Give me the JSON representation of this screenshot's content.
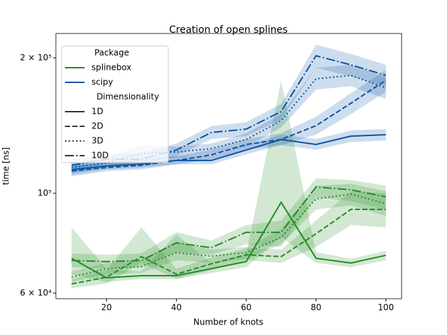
{
  "chart_data": {
    "type": "line",
    "title": "Creation of open splines",
    "x_label": "Number of knots",
    "y_label": "time [ns]",
    "x": [
      10,
      20,
      30,
      40,
      50,
      60,
      70,
      80,
      90,
      100
    ],
    "xlim": [
      5.5,
      104.5
    ],
    "xticks": [
      20,
      40,
      60,
      80,
      100
    ],
    "ylim": [
      58300,
      226600
    ],
    "y_scale": "log",
    "yticks": [
      {
        "value": 60000,
        "label": "6 × 10⁴"
      },
      {
        "value": 100000,
        "label": "10⁵"
      },
      {
        "value": 200000,
        "label": "2 × 10⁵"
      }
    ],
    "legend_position": "upper left",
    "legend_titles": [
      "Package",
      "Dimensionality"
    ],
    "packages": [
      {
        "name": "splinebox",
        "color": "#238b23"
      },
      {
        "name": "scipy",
        "color": "#0b54a3"
      }
    ],
    "dimensionalities": [
      {
        "name": "1D",
        "dash": "none"
      },
      {
        "name": "2D",
        "dash": "7.4 3.2"
      },
      {
        "name": "3D",
        "dash": "2 3.3"
      },
      {
        "name": "10D",
        "dash": "12.8 3.2 2 3.2"
      }
    ],
    "series": [
      {
        "package": 0,
        "dimensionality": 0,
        "values": [
          71700,
          64900,
          65600,
          65600,
          68000,
          70500,
          95500,
          71700,
          70000,
          72800
        ],
        "lower": [
          66000,
          63500,
          64500,
          64500,
          66500,
          68500,
          80000,
          70000,
          68500,
          71000
        ],
        "upper": [
          84000,
          68000,
          67000,
          81000,
          70000,
          73000,
          178000,
          74000,
          71500,
          74500
        ]
      },
      {
        "package": 0,
        "dimensionality": 1,
        "values": [
          62900,
          65100,
          72300,
          66100,
          69700,
          73000,
          72300,
          81300,
          92100,
          92100
        ],
        "lower": [
          61500,
          63000,
          70000,
          64500,
          67500,
          71000,
          70000,
          76000,
          85000,
          84000
        ],
        "upper": [
          64500,
          67500,
          84000,
          68000,
          72000,
          75500,
          75000,
          87000,
          101000,
          100000
        ]
      },
      {
        "package": 0,
        "dimensionality": 2,
        "values": [
          65100,
          68000,
          68700,
          73800,
          72500,
          73800,
          79800,
          97200,
          99600,
          94800
        ],
        "lower": [
          63500,
          66000,
          66500,
          71000,
          70000,
          71500,
          77000,
          92000,
          94000,
          89000
        ],
        "upper": [
          67000,
          70000,
          71000,
          78000,
          75000,
          76000,
          83000,
          104000,
          105000,
          101000
        ]
      },
      {
        "package": 0,
        "dimensionality": 3,
        "values": [
          70900,
          70500,
          70900,
          77600,
          75700,
          81900,
          81900,
          103300,
          101800,
          98200
        ],
        "lower": [
          68500,
          68000,
          68500,
          74000,
          73000,
          77000,
          76000,
          98000,
          96000,
          92000
        ],
        "upper": [
          73500,
          73000,
          73500,
          82000,
          78500,
          85000,
          87000,
          108000,
          107000,
          104000
        ]
      },
      {
        "package": 1,
        "dimensionality": 0,
        "values": [
          112900,
          115000,
          116200,
          118300,
          118300,
          124800,
          131700,
          128400,
          134000,
          135000
        ],
        "lower": [
          110000,
          113000,
          114000,
          116000,
          116000,
          122000,
          128000,
          125000,
          130000,
          131000
        ],
        "upper": [
          116000,
          117000,
          119000,
          121000,
          121000,
          128000,
          135000,
          132000,
          138000,
          139000
        ]
      },
      {
        "package": 1,
        "dimensionality": 1,
        "values": [
          112100,
          114100,
          115400,
          118300,
          121700,
          128400,
          131700,
          141400,
          158600,
          178400
        ],
        "lower": [
          109000,
          112000,
          113000,
          116000,
          119000,
          125000,
          128000,
          135000,
          150000,
          168000
        ],
        "upper": [
          115000,
          117000,
          118000,
          121000,
          125000,
          132000,
          136000,
          148000,
          167000,
          188000
        ]
      },
      {
        "package": 1,
        "dimensionality": 2,
        "values": [
          114100,
          117000,
          122600,
          123500,
          125700,
          131700,
          145000,
          179700,
          182900,
          171500
        ],
        "lower": [
          111000,
          114000,
          118000,
          120000,
          122000,
          127000,
          140000,
          170000,
          173000,
          162000
        ],
        "upper": [
          117000,
          120000,
          128000,
          127000,
          129000,
          136000,
          150000,
          190000,
          193000,
          181000
        ]
      },
      {
        "package": 1,
        "dimensionality": 3,
        "values": [
          115400,
          119100,
          119100,
          124800,
          136500,
          138900,
          151900,
          202200,
          193000,
          182900
        ],
        "lower": [
          112000,
          116000,
          116000,
          121000,
          132000,
          134000,
          146000,
          190000,
          182000,
          173000
        ],
        "upper": [
          119000,
          122000,
          123000,
          129000,
          141000,
          144000,
          158000,
          214000,
          204000,
          193000
        ]
      }
    ]
  }
}
